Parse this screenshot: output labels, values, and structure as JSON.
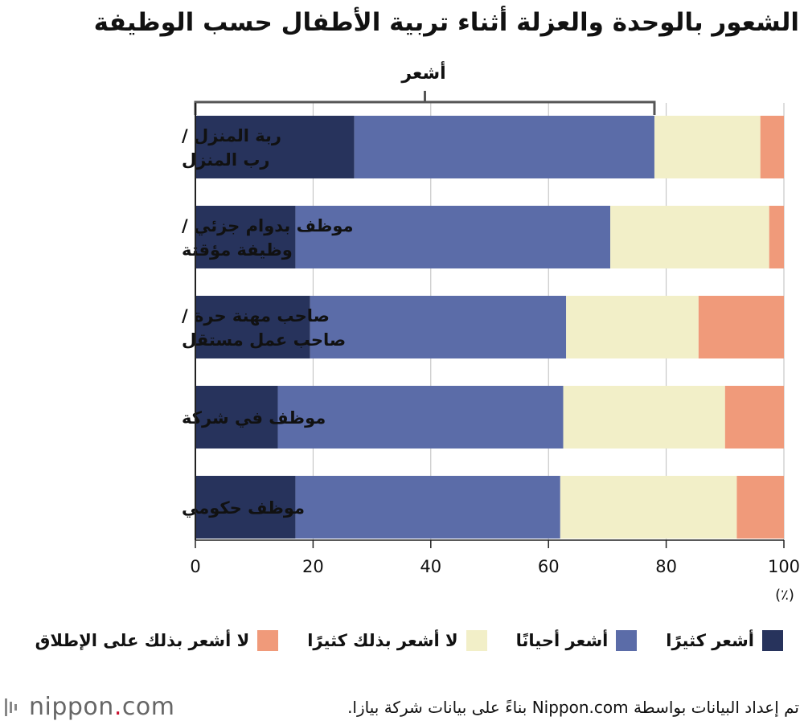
{
  "title": "الشعور بالوحدة والعزلة أثناء تربية الأطفال حسب الوظيفة",
  "bracket_label": "أشعر",
  "chart_data": {
    "type": "bar",
    "orientation": "horizontal",
    "stacked": true,
    "title": "الشعور بالوحدة والعزلة أثناء تربية الأطفال حسب الوظيفة",
    "categories": [
      [
        "ربة المنزل /",
        "رب المنزل"
      ],
      [
        "موظف بدوام جزئي /",
        "وظيفة مؤقتة"
      ],
      [
        "صاحب مهنة حرة /",
        "صاحب عمل مستقل"
      ],
      [
        "موظف في شركة"
      ],
      [
        "موظف حكومي"
      ]
    ],
    "series": [
      {
        "name": "أشعر كثيرًا",
        "color": "#27335c",
        "values": [
          27,
          17,
          19.5,
          14,
          17
        ]
      },
      {
        "name": "أشعر أحيانًا",
        "color": "#5b6ca8",
        "values": [
          51,
          53.5,
          43.5,
          48.5,
          45
        ]
      },
      {
        "name": "لا أشعر بذلك كثيرًا",
        "color": "#f2efc8",
        "values": [
          18,
          27,
          22.5,
          27.5,
          30
        ]
      },
      {
        "name": "لا أشعر بذلك على الإطلاق",
        "color": "#f09a7a",
        "values": [
          4,
          2.5,
          14.5,
          10,
          8
        ]
      }
    ],
    "xlim": [
      0,
      100
    ],
    "x_ticks": [
      0,
      20,
      40,
      60,
      80,
      100
    ],
    "unit_label": "(٪)",
    "grid": true
  },
  "legend": [
    {
      "label": "أشعر كثيرًا",
      "color": "#27335c"
    },
    {
      "label": "أشعر أحيانًا",
      "color": "#5b6ca8"
    },
    {
      "label": "لا أشعر بذلك كثيرًا",
      "color": "#f2efc8"
    },
    {
      "label": "لا أشعر بذلك على الإطلاق",
      "color": "#f09a7a"
    }
  ],
  "footer": {
    "logo_text": "nippon",
    "logo_dot": ".",
    "logo_suffix": "com",
    "source": "تم إعداد البيانات بواسطة Nippon.com بناءً على بيانات شركة بيازا."
  }
}
